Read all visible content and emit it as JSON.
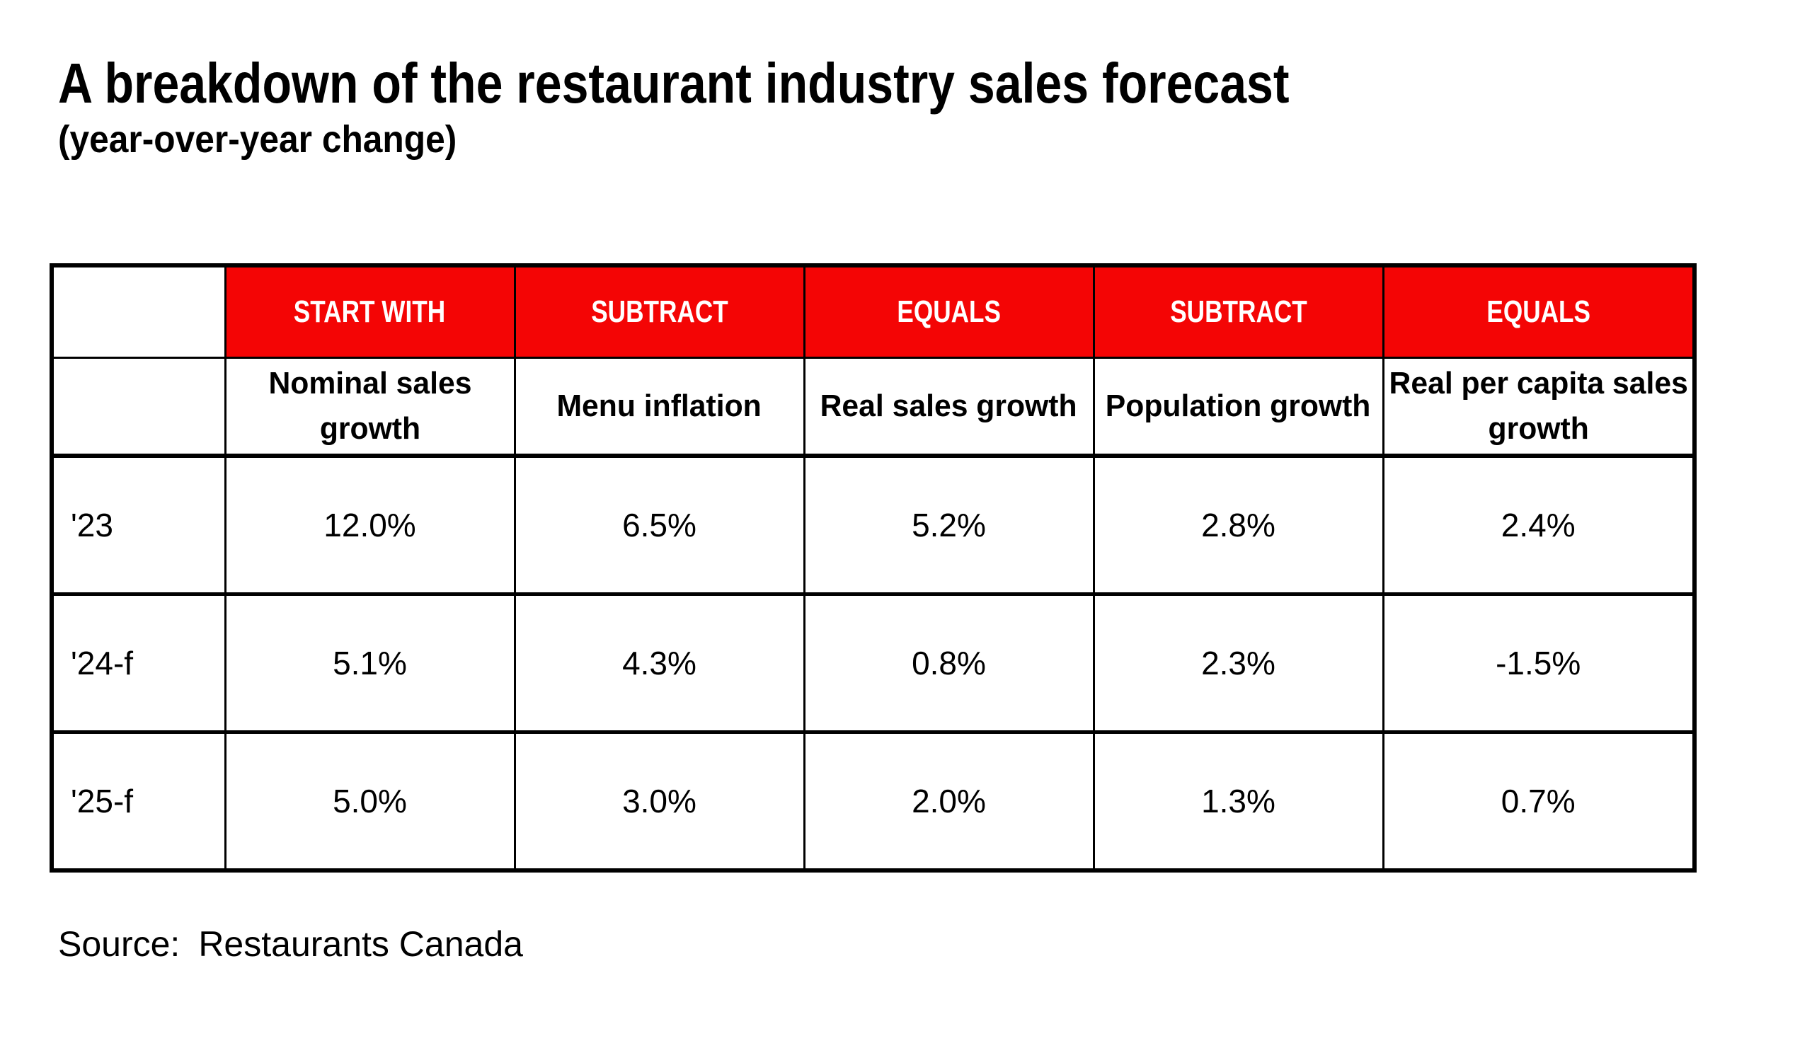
{
  "title": "A breakdown of the restaurant industry sales forecast",
  "subtitle": "(year-over-year change)",
  "source": {
    "label": "Source:",
    "value": "Restaurants Canada"
  },
  "colors": {
    "header_fill": "#F40505",
    "header_text": "#FFFFFF",
    "border": "#000000",
    "text": "#000000",
    "background": "#FFFFFF"
  },
  "chart_data": {
    "type": "table",
    "title": "A breakdown of the restaurant industry sales forecast",
    "subtitle": "(year-over-year change)",
    "operation_headers": [
      "",
      "START WITH",
      "SUBTRACT",
      "EQUALS",
      "SUBTRACT",
      "EQUALS"
    ],
    "measure_headers": [
      "",
      "Nominal sales\ngrowth",
      "Menu inflation",
      "Real sales growth",
      "Population growth",
      "Real per capita sales\ngrowth"
    ],
    "rows": [
      {
        "label": "'23",
        "values": [
          "12.0%",
          "6.5%",
          "5.2%",
          "2.8%",
          "2.4%"
        ]
      },
      {
        "label": "'24-f",
        "values": [
          "5.1%",
          "4.3%",
          "0.8%",
          "2.3%",
          "-1.5%"
        ]
      },
      {
        "label": "'25-f",
        "values": [
          "5.0%",
          "3.0%",
          "2.0%",
          "1.3%",
          "0.7%"
        ]
      }
    ],
    "source": "Source: Restaurants Canada"
  }
}
